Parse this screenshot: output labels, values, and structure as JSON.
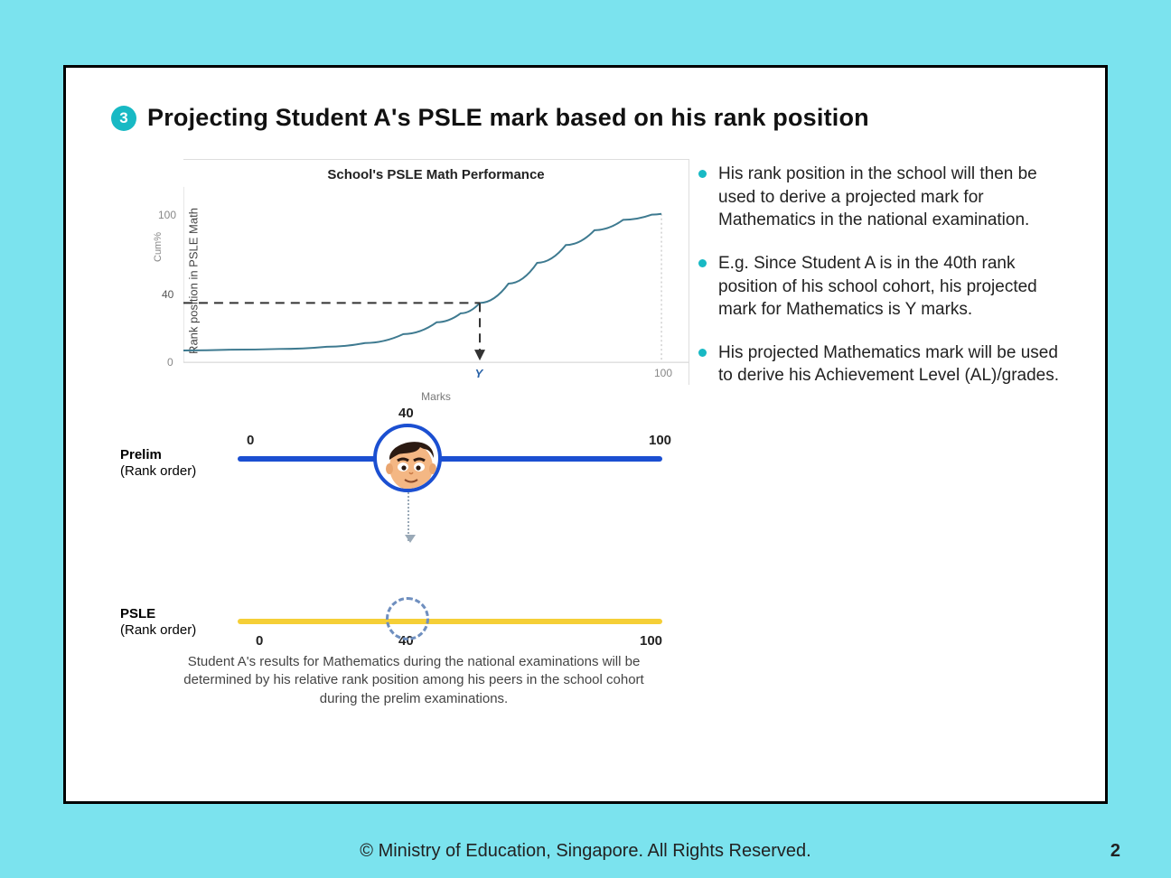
{
  "page": {
    "background_color": "#7be3ee",
    "slide_bg": "#ffffff",
    "slide_border": "#000000",
    "accent_teal": "#18b9c4",
    "page_number": "2"
  },
  "header": {
    "step_number": "3",
    "title": "Projecting Student A's PSLE mark based on his rank position"
  },
  "chart": {
    "type": "line",
    "title": "School's PSLE Math Performance",
    "y_axis_label": "Rank position in PSLE Math",
    "cum_label": "Cum%",
    "x_axis_label": "Marks",
    "xlim": [
      0,
      100
    ],
    "ylim": [
      0,
      100
    ],
    "y_ticks": {
      "top": "100",
      "mid": "40",
      "bottom": "0"
    },
    "x_marker_label": "Y",
    "x_marker_position_pct": 62,
    "x_tick_right": "100",
    "curve_color": "#3e7a90",
    "curve_width": 2,
    "dash_color": "#333333",
    "grid_color": "#dddddd",
    "background_color": "#ffffff",
    "curve_points_pct": [
      [
        0,
        8
      ],
      [
        10,
        8.5
      ],
      [
        20,
        9
      ],
      [
        30,
        10.5
      ],
      [
        38,
        13
      ],
      [
        46,
        19
      ],
      [
        53,
        27
      ],
      [
        58,
        33
      ],
      [
        62,
        40
      ],
      [
        68,
        53
      ],
      [
        74,
        67
      ],
      [
        80,
        79
      ],
      [
        86,
        89
      ],
      [
        92,
        96
      ],
      [
        98,
        99.5
      ],
      [
        100,
        100
      ]
    ],
    "dotted_drop_color": "#b8b8b8"
  },
  "rank": {
    "prelim": {
      "label_line1": "Prelim",
      "label_line2": "(Rank order)",
      "min": "0",
      "max": "100",
      "marker_value": "40",
      "marker_position_pct": 40,
      "bar_color": "#1b4fd1"
    },
    "psle": {
      "label_line1": "PSLE",
      "label_line2": "(Rank order)",
      "min": "0",
      "max": "100",
      "marker_value": "40",
      "marker_position_pct": 40,
      "bar_color": "#f5cf37"
    },
    "avatar_border_color": "#1b4fd1",
    "dashed_circle_color": "#6f8fbf",
    "dotted_arrow_color": "#9aa9b7",
    "caption": "Student A's results for Mathematics during the national examinations will be determined by his relative rank position among his peers in the school cohort during the prelim examinations."
  },
  "bullets": [
    "His rank position in the school will then be used to derive a projected mark for Mathematics in the national examination.",
    "E.g. Since Student A is in the 40th rank position of his school cohort, his projected mark for Mathematics is Y marks.",
    "His projected Mathematics mark will be used to derive his Achievement Level (AL)/grades."
  ],
  "footer": {
    "text": "© Ministry of Education, Singapore. All Rights Reserved."
  }
}
